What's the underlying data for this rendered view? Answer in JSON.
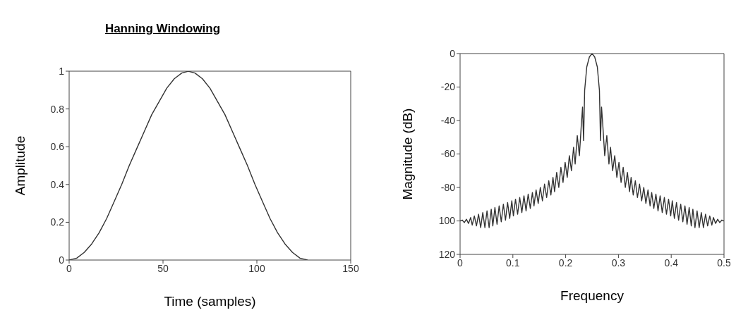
{
  "chart_data": [
    {
      "type": "line",
      "title": "Hanning Windowing",
      "xlabel": "Time (samples)",
      "ylabel": "Amplitude",
      "color": "#333333",
      "marker": "none",
      "x": [
        0,
        4,
        8,
        12,
        16,
        20,
        24,
        28,
        32,
        36,
        40,
        44,
        48,
        52,
        56,
        60,
        63.5,
        67,
        71,
        75,
        79,
        83,
        87,
        91,
        95,
        99,
        103,
        107,
        111,
        115,
        119,
        123,
        127
      ],
      "values": [
        0,
        0.01,
        0.04,
        0.085,
        0.145,
        0.22,
        0.31,
        0.4,
        0.5,
        0.59,
        0.68,
        0.77,
        0.84,
        0.91,
        0.96,
        0.99,
        1,
        0.99,
        0.96,
        0.91,
        0.84,
        0.77,
        0.68,
        0.59,
        0.5,
        0.4,
        0.31,
        0.22,
        0.145,
        0.085,
        0.04,
        0.01,
        0
      ],
      "xlim": [
        0,
        150
      ],
      "xticks": [
        0,
        50,
        100,
        150
      ],
      "ylim": [
        0,
        1
      ],
      "yticks": [
        0,
        0.2,
        0.4,
        0.6,
        0.8,
        1
      ]
    },
    {
      "type": "line",
      "xlabel": "Frequency",
      "ylabel": "Magnitude (dB)",
      "color": "#333333",
      "marker": "none",
      "x": [
        0,
        0.004,
        0.008,
        0.012,
        0.016,
        0.02,
        0.023,
        0.027,
        0.031,
        0.035,
        0.039,
        0.043,
        0.047,
        0.051,
        0.055,
        0.059,
        0.062,
        0.066,
        0.07,
        0.074,
        0.078,
        0.082,
        0.086,
        0.09,
        0.094,
        0.098,
        0.101,
        0.105,
        0.109,
        0.113,
        0.117,
        0.121,
        0.125,
        0.129,
        0.133,
        0.137,
        0.14,
        0.144,
        0.148,
        0.152,
        0.156,
        0.16,
        0.164,
        0.168,
        0.172,
        0.176,
        0.179,
        0.183,
        0.187,
        0.191,
        0.195,
        0.199,
        0.203,
        0.207,
        0.211,
        0.215,
        0.218,
        0.222,
        0.226,
        0.23,
        0.232,
        0.234,
        0.236,
        0.24,
        0.245,
        0.25,
        0.255,
        0.26,
        0.264,
        0.266,
        0.268,
        0.27,
        0.274,
        0.278,
        0.282,
        0.285,
        0.289,
        0.293,
        0.297,
        0.301,
        0.305,
        0.309,
        0.313,
        0.317,
        0.321,
        0.324,
        0.328,
        0.332,
        0.336,
        0.34,
        0.344,
        0.348,
        0.352,
        0.356,
        0.36,
        0.363,
        0.367,
        0.371,
        0.375,
        0.379,
        0.383,
        0.387,
        0.391,
        0.395,
        0.399,
        0.402,
        0.406,
        0.41,
        0.414,
        0.418,
        0.422,
        0.426,
        0.43,
        0.434,
        0.438,
        0.441,
        0.445,
        0.449,
        0.453,
        0.457,
        0.461,
        0.465,
        0.469,
        0.473,
        0.477,
        0.48,
        0.484,
        0.488,
        0.492,
        0.496,
        0.5
      ],
      "values": [
        -100,
        -99.5,
        -101,
        -99,
        -101.5,
        -98,
        -102.5,
        -97,
        -103,
        -96,
        -104,
        -95,
        -104,
        -94,
        -104,
        -93,
        -103,
        -92,
        -102,
        -91,
        -100.5,
        -90,
        -99.5,
        -89,
        -98.5,
        -88,
        -97,
        -87,
        -96,
        -86,
        -95,
        -85,
        -94,
        -84,
        -92.5,
        -83,
        -91,
        -81.5,
        -89.5,
        -80,
        -88,
        -78,
        -86,
        -76,
        -84.5,
        -74,
        -82.5,
        -71,
        -80,
        -68,
        -77,
        -65,
        -74,
        -61,
        -70,
        -56,
        -66,
        -49,
        -61,
        -41,
        -32,
        -52,
        -22,
        -8,
        -2,
        0,
        -2,
        -8,
        -22,
        -52,
        -32,
        -41,
        -61,
        -49,
        -66,
        -56,
        -70,
        -61,
        -74,
        -65,
        -77,
        -68,
        -80,
        -71,
        -82.5,
        -74,
        -84.5,
        -76,
        -86,
        -78,
        -88,
        -80,
        -89.5,
        -81.5,
        -91,
        -83,
        -92.5,
        -84,
        -94,
        -85,
        -95,
        -86,
        -96,
        -87,
        -97,
        -88,
        -98.5,
        -89,
        -99.5,
        -90,
        -100.5,
        -91,
        -102,
        -92,
        -103,
        -93,
        -104,
        -94,
        -104,
        -95,
        -104,
        -96,
        -103,
        -97,
        -102.5,
        -98,
        -101.5,
        -99,
        -101,
        -99.5,
        -100
      ],
      "xlim": [
        0,
        0.5
      ],
      "xticks": [
        0,
        0.1,
        0.2,
        0.3,
        0.4,
        0.5
      ],
      "ylim": [
        -120,
        0
      ],
      "yticks": [
        {
          "value": -120,
          "label": "120"
        },
        {
          "value": -100,
          "label": "100"
        },
        -80,
        -60,
        -40,
        -20,
        0
      ]
    }
  ]
}
